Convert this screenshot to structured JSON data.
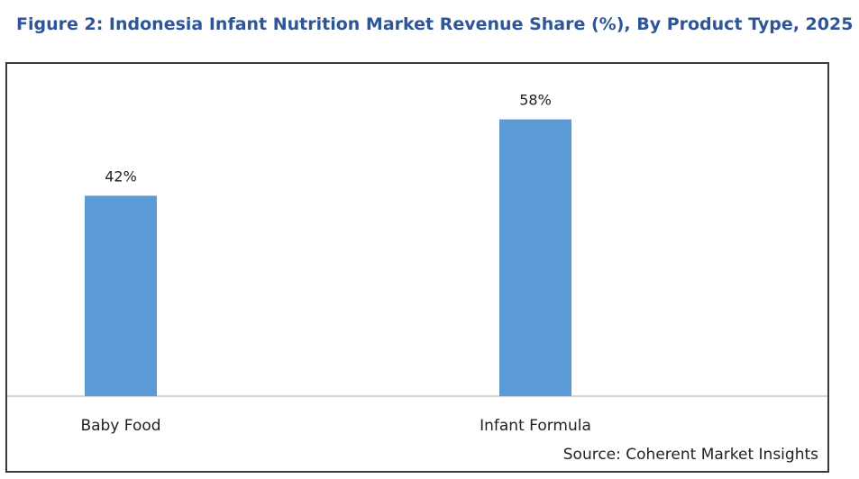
{
  "figure_title": "Figure 2: Indonesia Infant Nutrition Market Revenue Share (%), By Product Type, 2025",
  "source": "Source: Coherent Market Insights",
  "colors": {
    "title": "#2e5597",
    "bar": "#5b9bd5",
    "axis": "#c9c9c9",
    "text": "#222222"
  },
  "chart_data": {
    "type": "bar",
    "categories": [
      "Baby Food",
      "Infant Formula"
    ],
    "values": [
      42,
      58
    ],
    "data_labels": [
      "42%",
      "58%"
    ],
    "title": "Figure 2: Indonesia Infant Nutrition Market Revenue Share (%), By Product Type, 2025",
    "xlabel": "",
    "ylabel": "",
    "ylim": [
      0,
      70
    ],
    "grid": false,
    "legend": "none"
  }
}
